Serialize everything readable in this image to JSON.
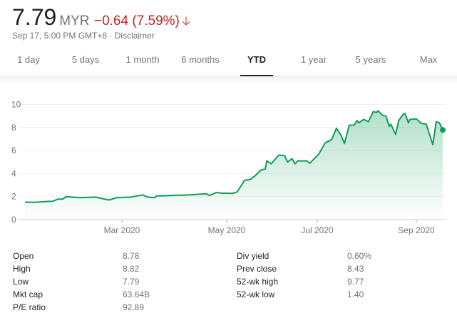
{
  "quote": {
    "price": "7.79",
    "currency": "MYR",
    "change": "−0.64 (7.59%)",
    "direction_icon": "arrow-down-icon",
    "timestamp": "Sep 17, 5:00 PM GMT+8",
    "separator": " · ",
    "disclaimer": "Disclaimer"
  },
  "colors": {
    "negative": "#c5221f",
    "line": "#0f9d58"
  },
  "tabs": [
    {
      "label": "1 day"
    },
    {
      "label": "5 days"
    },
    {
      "label": "1 month"
    },
    {
      "label": "6 months"
    },
    {
      "label": "YTD",
      "selected": true
    },
    {
      "label": "1 year"
    },
    {
      "label": "5 years"
    },
    {
      "label": "Max"
    }
  ],
  "chart_data": {
    "type": "area",
    "x_unit": "day of year 2020",
    "x": [
      1,
      7,
      15,
      18,
      21,
      24,
      26,
      34,
      44,
      52,
      57,
      65,
      67,
      72,
      75,
      79,
      80,
      89,
      100,
      109,
      111,
      115,
      118,
      125,
      128,
      133,
      137,
      140,
      144,
      147,
      148,
      151,
      156,
      160,
      162,
      165,
      167,
      169,
      175,
      177,
      183,
      187,
      191,
      194,
      197,
      199,
      202,
      205,
      207,
      208,
      211,
      214,
      217,
      219,
      220,
      223,
      225,
      227,
      228,
      231,
      233,
      236,
      237,
      239,
      240,
      244,
      247,
      250,
      254,
      256,
      258,
      260
    ],
    "values": [
      1.52,
      1.5,
      1.58,
      1.6,
      1.78,
      1.78,
      2.0,
      1.9,
      1.95,
      1.7,
      1.9,
      1.95,
      2.0,
      2.15,
      1.95,
      1.9,
      2.05,
      2.1,
      2.15,
      2.25,
      2.1,
      2.35,
      2.3,
      2.28,
      2.4,
      3.4,
      3.5,
      3.8,
      4.3,
      4.4,
      5.1,
      4.85,
      5.6,
      5.55,
      5.0,
      5.3,
      4.85,
      5.1,
      5.1,
      4.9,
      5.7,
      6.67,
      6.95,
      7.94,
      7.3,
      6.6,
      8.2,
      8.2,
      8.6,
      8.4,
      8.7,
      8.5,
      9.38,
      9.3,
      9.45,
      9.05,
      9.0,
      8.1,
      8.3,
      7.4,
      8.6,
      9.2,
      9.2,
      8.4,
      8.7,
      8.75,
      8.35,
      8.3,
      6.5,
      8.5,
      8.4,
      7.79
    ],
    "ylim": [
      0,
      10
    ],
    "yticks": [
      "0",
      "2",
      "4",
      "6",
      "8",
      "10"
    ],
    "xticks": [
      {
        "label": "Mar 2020",
        "day": 60
      },
      {
        "label": "May 2020",
        "day": 121
      },
      {
        "label": "Jul 2020",
        "day": 182
      },
      {
        "label": "Sep 2020",
        "day": 244
      }
    ],
    "grid": true
  },
  "stats": {
    "left": [
      {
        "label": "Open",
        "value": "8.78"
      },
      {
        "label": "High",
        "value": "8.82"
      },
      {
        "label": "Low",
        "value": "7.79"
      },
      {
        "label": "Mkt cap",
        "value": "63.64B"
      },
      {
        "label": "P/E ratio",
        "value": "92.89"
      }
    ],
    "right": [
      {
        "label": "Div yield",
        "value": "0.60%"
      },
      {
        "label": "Prev close",
        "value": "8.43"
      },
      {
        "label": "52-wk high",
        "value": "9.77"
      },
      {
        "label": "52-wk low",
        "value": "1.40"
      }
    ]
  }
}
